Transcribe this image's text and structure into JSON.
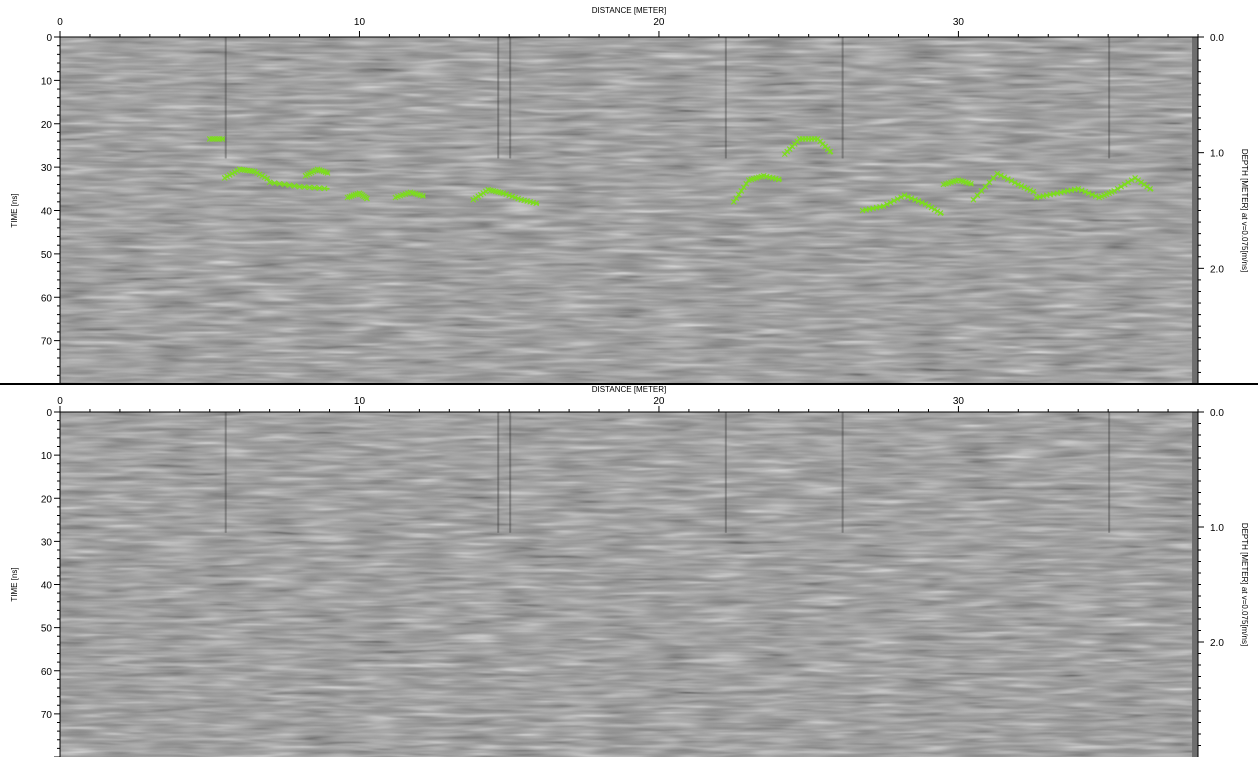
{
  "colors": {
    "background": "#ffffff",
    "radargram_mid": "#8c8c8c",
    "padding_strip": "#6e6e6e",
    "pick_marker": "#7ddc1f",
    "divider": "#000000"
  },
  "chart_data": [
    {
      "type": "heatmap",
      "subtype": "gpr-radargram-with-picks",
      "xlabel": "DISTANCE [METER]",
      "ylabel": "TIME [ns]",
      "y2label": "DEPTH [METER] at v=0.075[m/ns]",
      "xticks": [
        "0",
        "10",
        "20",
        "30"
      ],
      "yticks": [
        "0",
        "10",
        "20",
        "30",
        "40",
        "50",
        "60",
        "70"
      ],
      "y2ticks": [
        "0.0",
        "1.0",
        "2.0"
      ],
      "xlim": [
        0,
        38
      ],
      "ylim": [
        0,
        80
      ],
      "data_extent_x": 37.8,
      "velocity_m_per_ns": 0.075,
      "grid": false,
      "legend": "none",
      "hyperbola_picks": [
        {
          "x": [
            5.0,
            5.5
          ],
          "y": [
            23.5,
            23.5
          ]
        },
        {
          "x": [
            5.5,
            6.0,
            6.5,
            7.0
          ],
          "y": [
            32.5,
            30.5,
            31.0,
            33.0
          ]
        },
        {
          "x": [
            7.0,
            8.0,
            9.0
          ],
          "y": [
            33.5,
            34.5,
            35.0
          ]
        },
        {
          "x": [
            8.2,
            8.6,
            9.0
          ],
          "y": [
            32.0,
            30.5,
            31.5
          ]
        },
        {
          "x": [
            9.6,
            10.0,
            10.3
          ],
          "y": [
            37.0,
            36.0,
            37.5
          ]
        },
        {
          "x": [
            11.2,
            11.7,
            12.2
          ],
          "y": [
            37.0,
            35.8,
            36.8
          ]
        },
        {
          "x": [
            13.8,
            14.3,
            14.8,
            15.4,
            16.0
          ],
          "y": [
            37.5,
            35.2,
            36.0,
            37.5,
            38.5
          ]
        },
        {
          "x": [
            22.5,
            23.0,
            23.5,
            24.1
          ],
          "y": [
            38.0,
            33.0,
            32.0,
            33.0
          ]
        },
        {
          "x": [
            24.2,
            24.7,
            25.3,
            25.8
          ],
          "y": [
            27.0,
            23.5,
            23.5,
            27.0
          ]
        },
        {
          "x": [
            26.8,
            27.5,
            28.2,
            28.9,
            29.5
          ],
          "y": [
            40.0,
            39.0,
            36.5,
            38.5,
            41.0
          ]
        },
        {
          "x": [
            29.5,
            30.0,
            30.5
          ],
          "y": [
            34.0,
            33.0,
            34.0
          ]
        },
        {
          "x": [
            30.5,
            31.3,
            32.0,
            32.6
          ],
          "y": [
            37.5,
            31.5,
            34.0,
            36.0
          ]
        },
        {
          "x": [
            32.6,
            33.3,
            34.0,
            34.7,
            35.2,
            35.9,
            36.5
          ],
          "y": [
            37.0,
            36.0,
            35.0,
            37.0,
            35.5,
            32.5,
            35.5
          ]
        }
      ]
    },
    {
      "type": "heatmap",
      "subtype": "gpr-radargram",
      "xlabel": "DISTANCE [METER]",
      "ylabel": "TIME [ns]",
      "y2label": "DEPTH [METER] at v=0.075[m/ns]",
      "xticks": [
        "0",
        "10",
        "20",
        "30"
      ],
      "yticks": [
        "0",
        "10",
        "20",
        "30",
        "40",
        "50",
        "60",
        "70"
      ],
      "y2ticks": [
        "0.0",
        "1.0",
        "2.0"
      ],
      "xlim": [
        0,
        38
      ],
      "ylim": [
        0,
        80
      ],
      "data_extent_x": 37.8,
      "velocity_m_per_ns": 0.075,
      "grid": false,
      "legend": "none"
    }
  ]
}
